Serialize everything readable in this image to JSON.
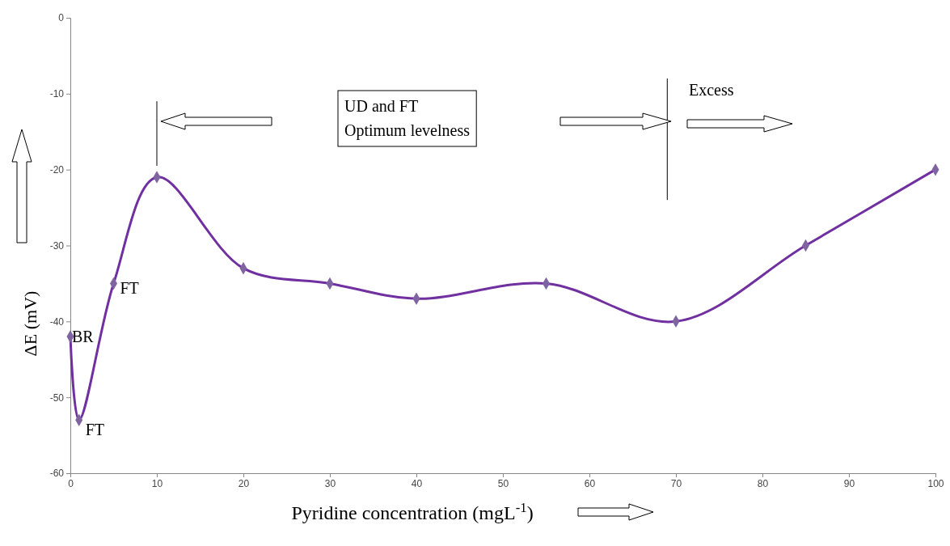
{
  "chart_data": {
    "type": "line",
    "xlabel": "Pyridine concentration (mgL$^{-1}$)",
    "ylabel": "ΔE (mV)",
    "x": [
      0,
      1,
      5,
      10,
      20,
      30,
      40,
      55,
      70,
      85,
      100
    ],
    "series": [
      {
        "color": "#7030a0",
        "values": [
          -42,
          -53,
          -35,
          -21,
          -33,
          -35,
          -37,
          -35,
          -40,
          -30,
          -20
        ]
      }
    ],
    "marker": "diamond",
    "line_style": "solid",
    "grid": false,
    "xlim": [
      0,
      100
    ],
    "xticks": [
      0,
      10,
      20,
      30,
      40,
      50,
      60,
      70,
      80,
      90,
      100
    ],
    "ylim": [
      -60,
      0
    ],
    "yticks": [
      -60,
      -50,
      -40,
      -30,
      -20,
      -10,
      0
    ],
    "annotations": [
      {
        "text": "BR",
        "x": 0,
        "y": -42
      },
      {
        "text": "FT",
        "x": 1,
        "y": -53
      },
      {
        "text": "FT",
        "x": 5,
        "y": -35
      },
      "UD and FT\nOptimum levelness",
      "Excess"
    ]
  }
}
